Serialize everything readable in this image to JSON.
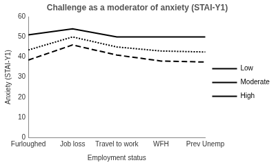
{
  "chart_data": {
    "type": "line",
    "title": "Challenge as a moderator of anxiety (STAI-Y1)",
    "x_label": "Employment status",
    "y_label": "Anxiety (STAI-Y1)",
    "categories": [
      "Furloughed",
      "Job loss",
      "Travel to work",
      "WFH",
      "Prev Unemp"
    ],
    "series": [
      {
        "name": "Low",
        "color": "#000000",
        "line_style": "solid",
        "marker": "none",
        "values": [
          51,
          54,
          50,
          50,
          50
        ]
      },
      {
        "name": "Moderate",
        "color": "#000000",
        "line_style": "dotted",
        "marker": "none",
        "values": [
          43.5,
          50,
          45,
          43,
          42.5
        ]
      },
      {
        "name": "High",
        "color": "#000000",
        "line_style": "dashed",
        "marker": "none",
        "values": [
          38.5,
          46,
          41,
          38,
          37.5
        ]
      }
    ],
    "ylim": [
      0,
      60
    ],
    "yticks": [
      0,
      10,
      20,
      30,
      40,
      50,
      60
    ],
    "grid": false,
    "legend": "right"
  }
}
